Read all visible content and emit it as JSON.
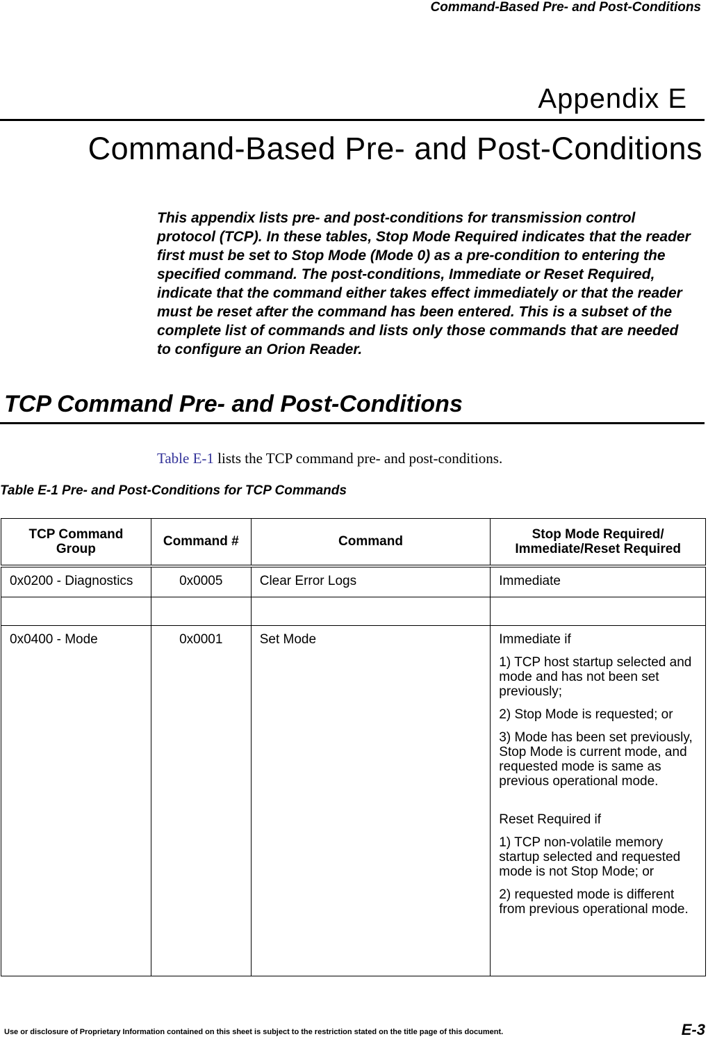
{
  "running_header": "Command-Based Pre- and Post-Conditions",
  "appendix_label": "Appendix E",
  "title": "Command-Based Pre- and Post-Conditions",
  "intro": "This appendix lists pre- and post-conditions for transmission control protocol (TCP). In these tables, Stop Mode Required indicates that the reader first must be set to Stop Mode (Mode 0) as a pre-condition to entering the specified command. The post-conditions, Immediate or Reset Required, indicate that the command either takes effect immediately or that the reader must be reset after the command has been entered. This is a subset of the complete list of commands and lists only those commands that are needed to configure an Orion Reader.",
  "section_heading": "TCP Command Pre- and Post-Conditions",
  "reference": {
    "link": "Table E-1",
    "text": " lists the TCP command pre- and post-conditions."
  },
  "table_caption": "Table E-1  Pre- and Post-Conditions for TCP Commands",
  "table": {
    "headers": [
      "TCP Command Group",
      "Command #",
      "Command",
      "Stop Mode Required/ Immediate/Reset Required"
    ],
    "rows": [
      {
        "group": "0x0200 - Diagnostics",
        "num": "0x0005",
        "command": "Clear Error Logs",
        "post": [
          "Immediate"
        ]
      },
      {
        "group": "",
        "num": "",
        "command": "",
        "post": []
      },
      {
        "group": "0x0400 - Mode",
        "num": "0x0001",
        "command": "Set Mode",
        "post": [
          "Immediate if",
          "1) TCP host startup selected and mode and has not been set previously;",
          "2) Stop Mode is requested; or",
          "3) Mode has been set previously, Stop Mode is current mode, and requested mode is same as previous operational mode.",
          "Reset Required if",
          "1) TCP non-volatile memory startup selected and requested mode is not Stop Mode; or",
          "2) requested mode is different from previous operational mode."
        ]
      }
    ]
  },
  "footer": "Use or disclosure of Proprietary Information contained on this sheet is subject to the restriction stated on the title page of this document.",
  "page_number": "E-3"
}
